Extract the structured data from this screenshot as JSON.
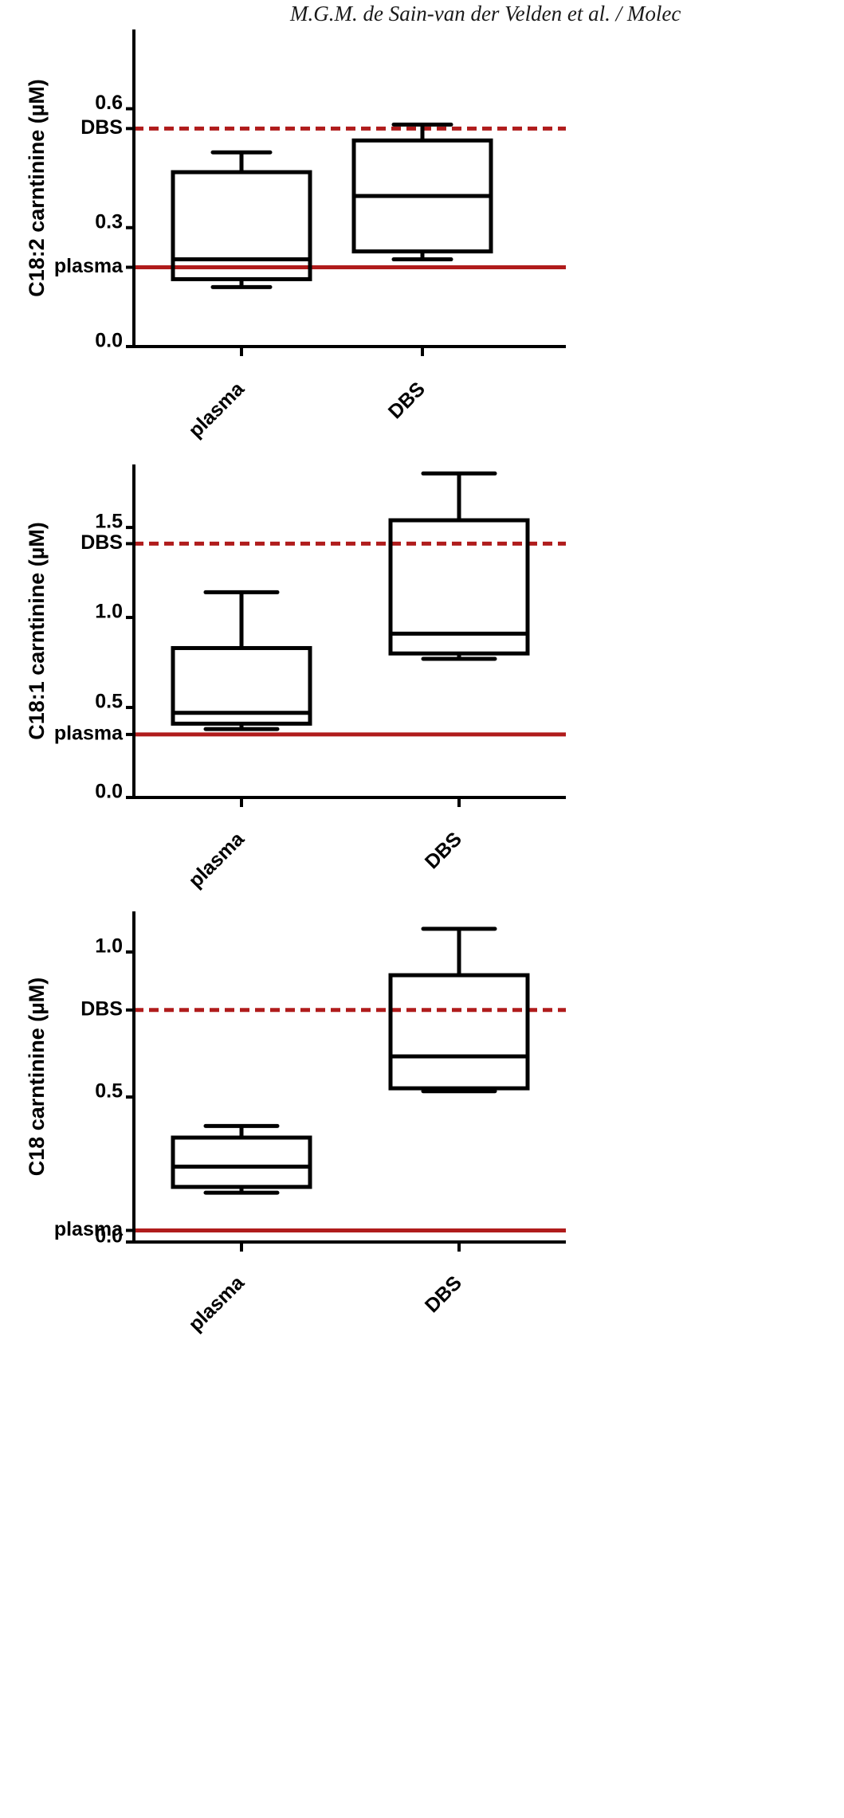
{
  "header": {
    "text": "M.G.M. de Sain-van der Velden et al. / Molec"
  },
  "chart_data": [
    {
      "type": "box",
      "ylabel": "C18:2 carntinine (µM)",
      "ylim": [
        0,
        0.8
      ],
      "yticks": [
        0.0,
        0.3,
        0.6
      ],
      "ytick_labels": [
        "0.0",
        "0.3",
        "0.6"
      ],
      "categories": [
        "plasma",
        "DBS"
      ],
      "boxes": [
        {
          "category": "plasma",
          "whisker_low": 0.15,
          "q1": 0.17,
          "median": 0.22,
          "q3": 0.44,
          "whisker_high": 0.49
        },
        {
          "category": "DBS",
          "whisker_low": 0.22,
          "q1": 0.24,
          "median": 0.38,
          "q3": 0.52,
          "whisker_high": 0.56
        }
      ],
      "reference_lines": [
        {
          "label": "DBS",
          "value": 0.55,
          "style": "dashed",
          "color": "#b01c1c"
        },
        {
          "label": "plasma",
          "value": 0.2,
          "style": "solid",
          "color": "#b01c1c"
        }
      ],
      "grid": false
    },
    {
      "type": "box",
      "ylabel": "C18:1 carntinine (µM)",
      "ylim": [
        0,
        1.85
      ],
      "yticks": [
        0.0,
        0.5,
        1.0,
        1.5
      ],
      "ytick_labels": [
        "0.0",
        "0.5",
        "1.0",
        "1.5"
      ],
      "categories": [
        "plasma",
        "DBS"
      ],
      "boxes": [
        {
          "category": "plasma",
          "whisker_low": 0.38,
          "q1": 0.41,
          "median": 0.47,
          "q3": 0.83,
          "whisker_high": 1.14
        },
        {
          "category": "DBS",
          "whisker_low": 0.77,
          "q1": 0.8,
          "median": 0.91,
          "q3": 1.54,
          "whisker_high": 1.8
        }
      ],
      "reference_lines": [
        {
          "label": "DBS",
          "value": 1.41,
          "style": "dashed",
          "color": "#b01c1c"
        },
        {
          "label": "plasma",
          "value": 0.35,
          "style": "solid",
          "color": "#b01c1c"
        }
      ],
      "grid": false
    },
    {
      "type": "box",
      "ylabel": "C18 carntinine (µM)",
      "ylim": [
        0,
        1.14
      ],
      "yticks": [
        0.0,
        0.5,
        1.0
      ],
      "ytick_labels": [
        "0.0",
        "0.5",
        "1.0"
      ],
      "categories": [
        "plasma",
        "DBS"
      ],
      "boxes": [
        {
          "category": "plasma",
          "whisker_low": 0.17,
          "q1": 0.19,
          "median": 0.26,
          "q3": 0.36,
          "whisker_high": 0.4
        },
        {
          "category": "DBS",
          "whisker_low": 0.52,
          "q1": 0.53,
          "median": 0.64,
          "q3": 0.92,
          "whisker_high": 1.08
        }
      ],
      "reference_lines": [
        {
          "label": "DBS",
          "value": 0.8,
          "style": "dashed",
          "color": "#b01c1c"
        },
        {
          "label": "plasma",
          "value": 0.04,
          "style": "solid",
          "color": "#b01c1c"
        }
      ],
      "grid": false
    }
  ]
}
